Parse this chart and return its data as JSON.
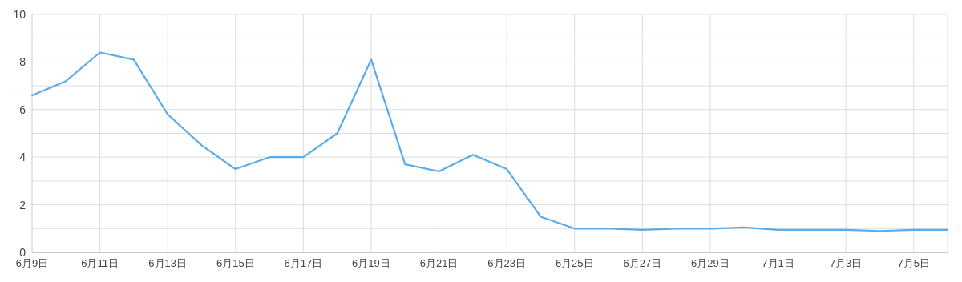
{
  "chart_data": {
    "type": "line",
    "categories": [
      "6月9日",
      null,
      "6月11日",
      null,
      "6月13日",
      null,
      "6月15日",
      null,
      "6月17日",
      null,
      "6月19日",
      null,
      "6月21日",
      null,
      "6月23日",
      null,
      "6月25日",
      null,
      "6月27日",
      null,
      "6月29日",
      null,
      "7月1日",
      null,
      "7月3日",
      null,
      "7月5日",
      null
    ],
    "series": [
      {
        "color": "#5aabe9",
        "values": [
          6.6,
          7.2,
          8.4,
          8.1,
          5.8,
          4.5,
          3.5,
          4.0,
          4.0,
          5.0,
          8.1,
          3.7,
          3.4,
          4.1,
          3.5,
          1.5,
          1.0,
          1.0,
          0.95,
          1.0,
          1.0,
          1.05,
          0.95,
          0.95,
          0.95,
          0.9,
          0.95,
          0.95
        ]
      }
    ],
    "ylim": [
      0,
      10
    ],
    "yticks": [
      0,
      {
        "value": 1,
        "label": null
      },
      2,
      {
        "value": 3,
        "label": null
      },
      4,
      {
        "value": 5,
        "label": null
      },
      6,
      {
        "value": 7,
        "label": null
      },
      8,
      {
        "value": 9,
        "label": null
      },
      10
    ],
    "grid": true,
    "marker": "none",
    "line_style": "solid"
  }
}
